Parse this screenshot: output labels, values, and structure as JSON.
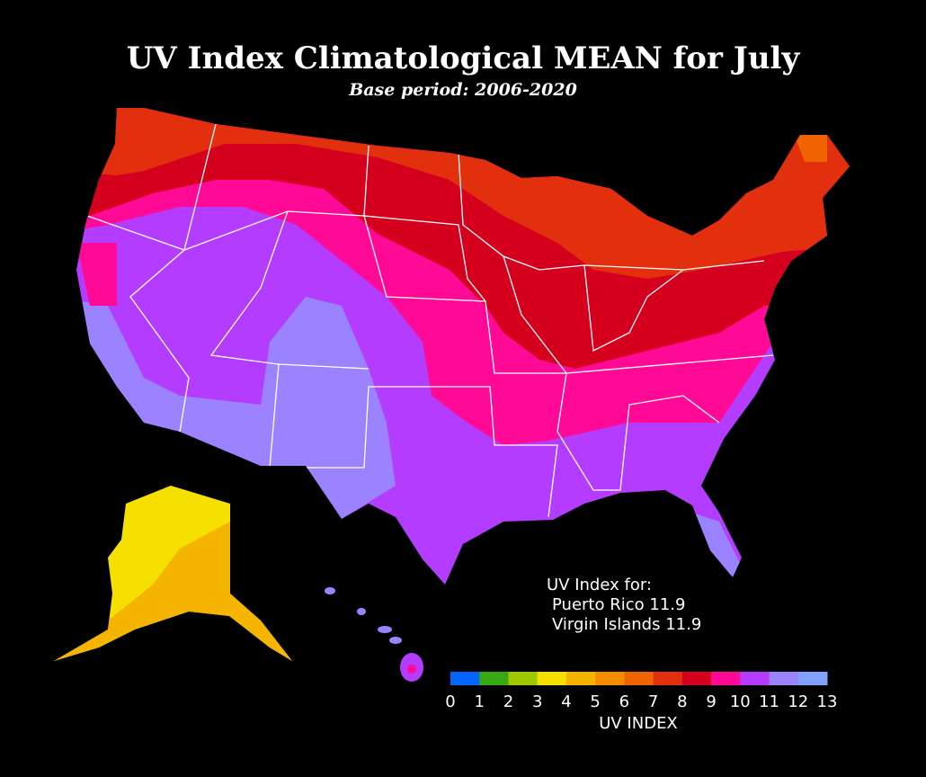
{
  "title": "UV Index Climatological MEAN for July",
  "subtitle": "Base period: 2006-2020",
  "annotation": {
    "lines": [
      "UV Index for:",
      "Puerto Rico 11.9",
      "Virgin Islands 11.9"
    ]
  },
  "colorbar": {
    "label": "UV INDEX",
    "ticks": [
      0,
      1,
      2,
      3,
      4,
      5,
      6,
      7,
      8,
      9,
      10,
      11,
      12,
      13
    ],
    "colors": [
      "#0066ff",
      "#38a814",
      "#a0c800",
      "#f5e000",
      "#f5b400",
      "#f58c00",
      "#f06400",
      "#e2300f",
      "#d4001e",
      "#ff0a96",
      "#b43cff",
      "#9b82ff",
      "#82a0ff"
    ]
  }
}
